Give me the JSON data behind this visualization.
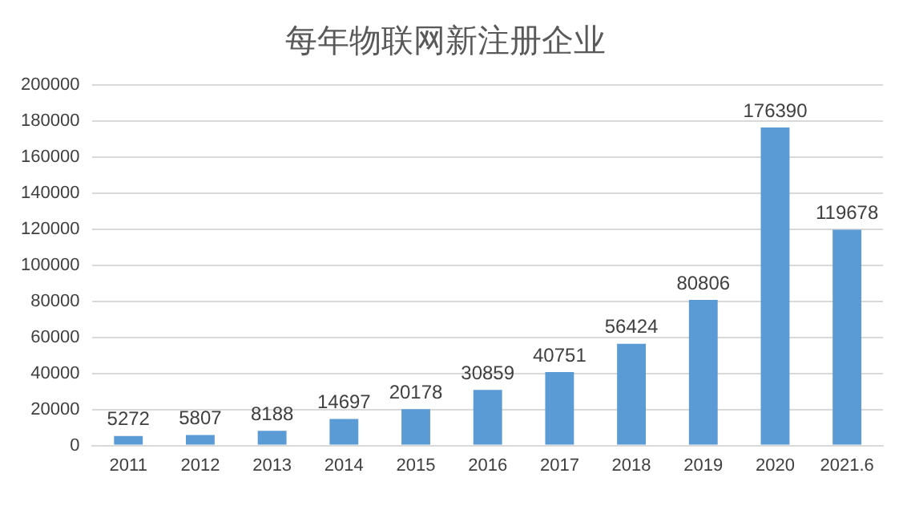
{
  "chart_data": {
    "type": "bar",
    "title": "每年物联网新注册企业",
    "categories": [
      "2011",
      "2012",
      "2013",
      "2014",
      "2015",
      "2016",
      "2017",
      "2018",
      "2019",
      "2020",
      "2021.6"
    ],
    "values": [
      5272,
      5807,
      8188,
      14697,
      20178,
      30859,
      40751,
      56424,
      80806,
      176390,
      119678
    ],
    "color": "#5b9bd5",
    "ylim": [
      0,
      200000
    ],
    "yticks": [
      0,
      20000,
      40000,
      60000,
      80000,
      100000,
      120000,
      140000,
      160000,
      180000,
      200000
    ],
    "grid": "y",
    "data_labels": true
  }
}
